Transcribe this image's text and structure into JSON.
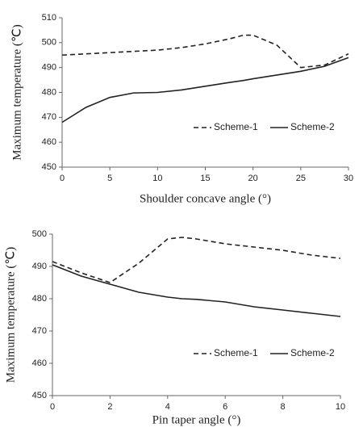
{
  "chart_data": [
    {
      "type": "line",
      "x_label": "Shoulder concave angle (°)",
      "y_label": "Maximum temperature (℃)",
      "x": [
        0,
        2.5,
        5,
        7.5,
        10,
        12.5,
        15,
        17.5,
        19,
        20,
        22.5,
        25,
        27.5,
        30
      ],
      "series": [
        {
          "name": "Scheme-1",
          "color": "#222222",
          "dash": true,
          "values": [
            495,
            495.5,
            496,
            496.5,
            497,
            498,
            499.5,
            501.5,
            503,
            503,
            499,
            490,
            491,
            495.5
          ]
        },
        {
          "name": "Scheme-2",
          "color": "#222222",
          "dash": false,
          "values": [
            468,
            474,
            478,
            479.8,
            480,
            481,
            482.5,
            484,
            484.8,
            485.5,
            487,
            488.5,
            490.5,
            494
          ]
        }
      ],
      "xlim": [
        0,
        30
      ],
      "xticks": [
        0,
        5,
        10,
        15,
        20,
        25,
        30
      ],
      "ylim": [
        450,
        510
      ],
      "yticks": [
        450,
        460,
        470,
        480,
        490,
        500,
        510
      ],
      "grid": false,
      "legend": "lower right"
    },
    {
      "type": "line",
      "x_label": "Pin taper angle (°)",
      "y_label": "Maximum temperature (℃)",
      "x": [
        0,
        1,
        2,
        3,
        4,
        4.5,
        5,
        6,
        7,
        8,
        9,
        10
      ],
      "series": [
        {
          "name": "Scheme-1",
          "color": "#222222",
          "dash": true,
          "values": [
            491.5,
            488,
            485,
            491,
            498.5,
            499,
            498.5,
            497,
            496,
            495,
            493.5,
            492.5
          ]
        },
        {
          "name": "Scheme-2",
          "color": "#222222",
          "dash": false,
          "values": [
            490.5,
            487,
            484.5,
            482,
            480.5,
            480,
            479.8,
            479,
            477.5,
            476.5,
            475.5,
            474.5
          ]
        }
      ],
      "xlim": [
        0,
        10
      ],
      "xticks": [
        0,
        2,
        4,
        6,
        8,
        10
      ],
      "ylim": [
        450,
        500
      ],
      "yticks": [
        450,
        460,
        470,
        480,
        490,
        500
      ],
      "grid": false,
      "legend": "lower right"
    }
  ]
}
